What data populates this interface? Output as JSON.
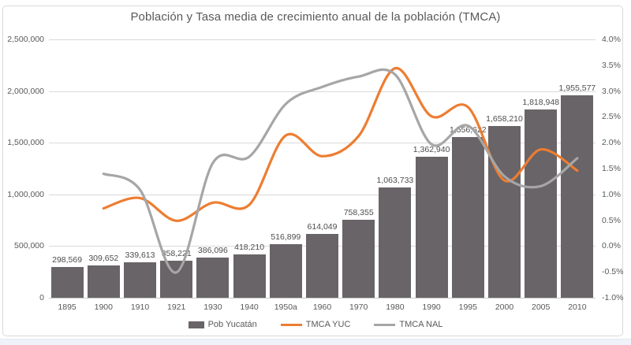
{
  "chart": {
    "title": "Población y Tasa media de crecimiento anual de la población (TMCA)"
  },
  "chart_data": {
    "type": "combo (bar + line, dual axis)",
    "title": "Población y Tasa media de crecimiento anual de la población (TMCA)",
    "categories": [
      "1895",
      "1900",
      "1910",
      "1921",
      "1930",
      "1940",
      "1950a",
      "1960",
      "1970",
      "1980",
      "1990",
      "1995",
      "2000",
      "2005",
      "2010"
    ],
    "series": [
      {
        "name": "Pob Yucatán",
        "type": "bar",
        "axis": "left",
        "color": "#696467",
        "values": [
          298569,
          309652,
          339613,
          358221,
          386096,
          418210,
          516899,
          614049,
          758355,
          1063733,
          1362940,
          1556622,
          1658210,
          1818948,
          1955577
        ],
        "labels": [
          "298,569",
          "309,652",
          "339,613",
          "358,221",
          "386,096",
          "418,210",
          "516,899",
          "614,049",
          "758,355",
          "1,063,733",
          "1,362,940",
          "1,556,622",
          "1,658,210",
          "1,818,948",
          "1,955,577"
        ]
      },
      {
        "name": "TMCA YUC",
        "type": "line",
        "axis": "right",
        "color": "#ED7D31",
        "start_category_index": 1,
        "values_pct": [
          0.73,
          0.93,
          0.49,
          0.84,
          0.8,
          2.14,
          1.74,
          2.13,
          3.44,
          2.51,
          2.69,
          1.27,
          1.87,
          1.46
        ]
      },
      {
        "name": "TMCA NAL",
        "type": "line",
        "axis": "right",
        "color": "#A6A6A6",
        "start_category_index": 1,
        "values_pct": [
          1.4,
          1.09,
          -0.51,
          1.61,
          1.73,
          2.75,
          3.08,
          3.28,
          3.32,
          1.97,
          2.33,
          1.35,
          1.16,
          1.7
        ]
      }
    ],
    "left_axis": {
      "min": 0,
      "max": 2500000,
      "tick_labels": [
        "0",
        "500,000",
        "1,000,000",
        "1,500,000",
        "2,000,000",
        "2,500,000"
      ]
    },
    "right_axis": {
      "min": -1.0,
      "max": 4.0,
      "tick_labels": [
        "-1.0%",
        "-0.5%",
        "0.0%",
        "0.5%",
        "1.0%",
        "1.5%",
        "2.0%",
        "2.5%",
        "3.0%",
        "3.5%",
        "4.0%"
      ]
    },
    "grid": "horizontal, every 500,000 (left axis)",
    "legend_position": "bottom",
    "legend": [
      "Pob Yucatán",
      "TMCA YUC",
      "TMCA NAL"
    ],
    "colors": {
      "bar": "#696467",
      "tmca_yuc": "#ED7D31",
      "tmca_nal": "#A6A6A6",
      "gridline": "#d9d9d9",
      "text": "#595959"
    }
  }
}
